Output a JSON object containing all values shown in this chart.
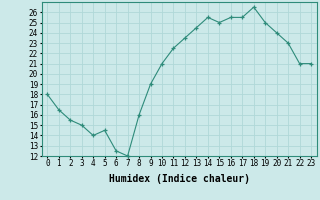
{
  "x": [
    0,
    1,
    2,
    3,
    4,
    5,
    6,
    7,
    8,
    9,
    10,
    11,
    12,
    13,
    14,
    15,
    16,
    17,
    18,
    19,
    20,
    21,
    22,
    23
  ],
  "y": [
    18,
    16.5,
    15.5,
    15,
    14,
    14.5,
    12.5,
    12,
    16,
    19,
    21,
    22.5,
    23.5,
    24.5,
    25.5,
    25,
    25.5,
    25.5,
    26.5,
    25,
    24,
    23,
    21,
    21
  ],
  "line_color": "#2e8b7a",
  "marker": "+",
  "marker_size": 3,
  "bg_color": "#cce9e9",
  "grid_color": "#b0d8d8",
  "xlabel": "Humidex (Indice chaleur)",
  "xlim": [
    -0.5,
    23.5
  ],
  "ylim": [
    12,
    27
  ],
  "yticks": [
    12,
    13,
    14,
    15,
    16,
    17,
    18,
    19,
    20,
    21,
    22,
    23,
    24,
    25,
    26
  ],
  "xticks": [
    0,
    1,
    2,
    3,
    4,
    5,
    6,
    7,
    8,
    9,
    10,
    11,
    12,
    13,
    14,
    15,
    16,
    17,
    18,
    19,
    20,
    21,
    22,
    23
  ],
  "tick_fontsize": 5.5,
  "xlabel_fontsize": 7,
  "axis_color": "#2e8b7a",
  "spine_color": "#2e8b7a"
}
